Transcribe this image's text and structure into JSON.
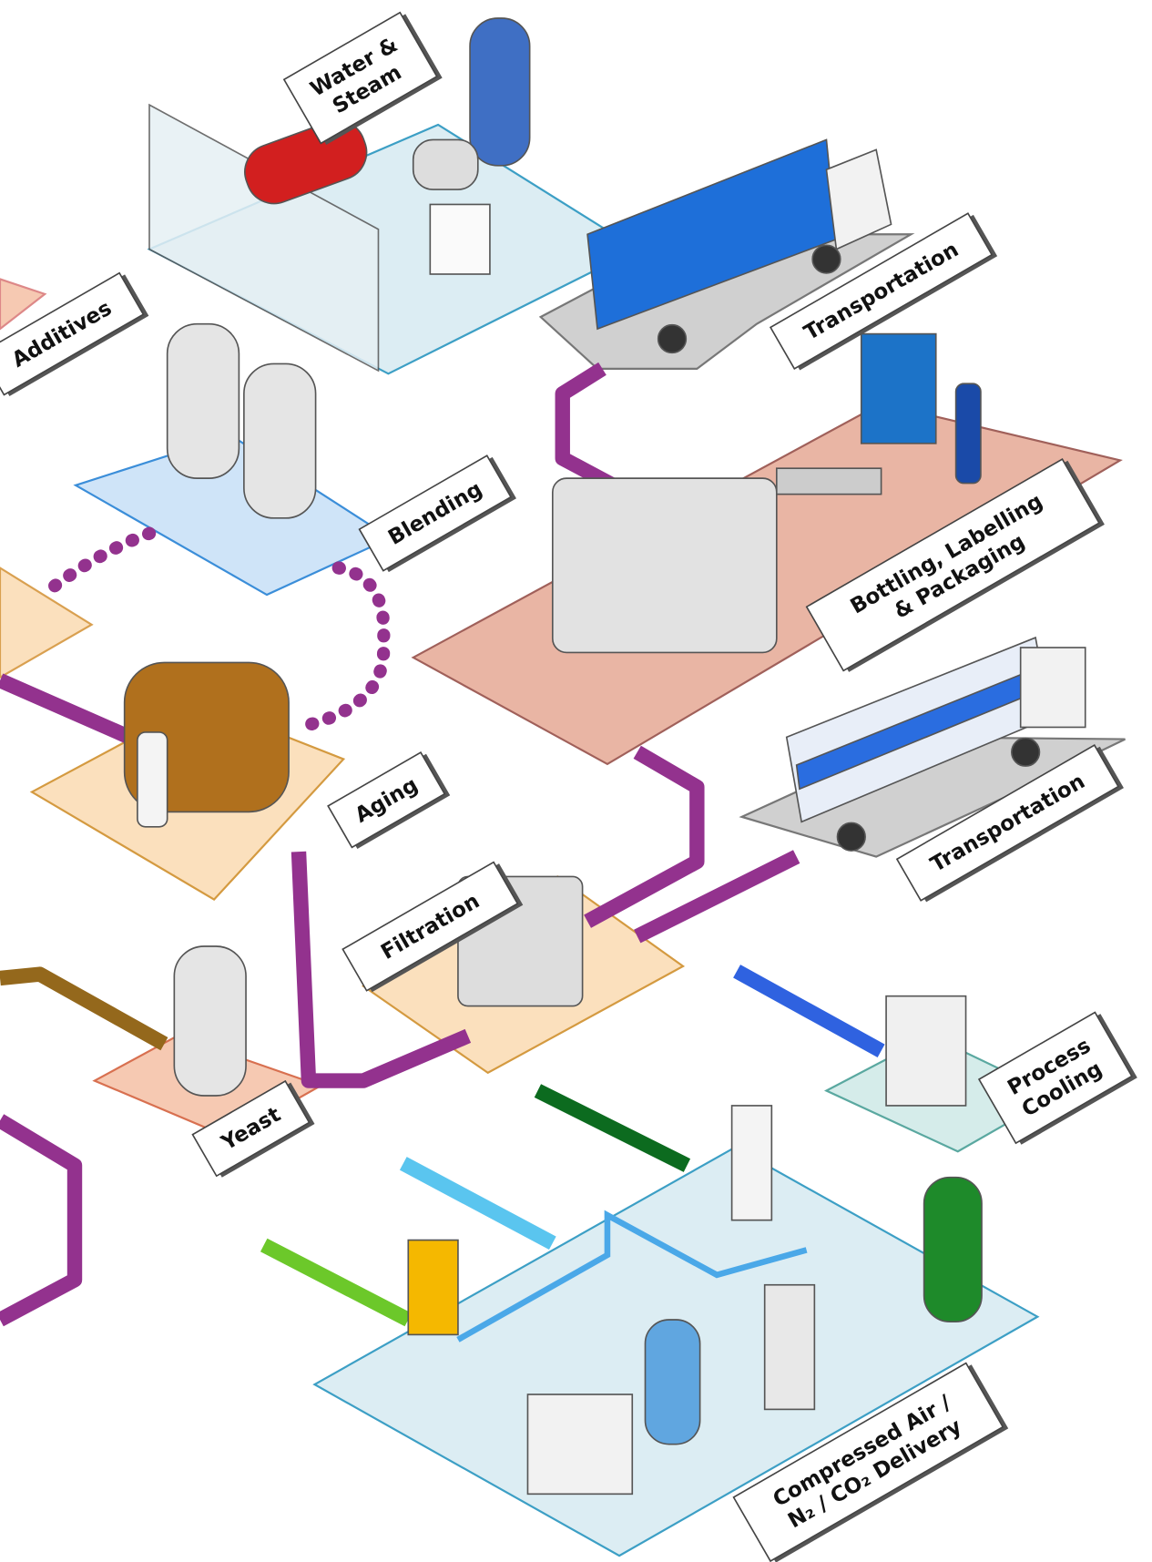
{
  "labels": [
    {
      "lines": [
        "Water &",
        "Steam"
      ]
    },
    {
      "lines": [
        "Additives"
      ]
    },
    {
      "lines": [
        "Transportation"
      ]
    },
    {
      "lines": [
        "Blending"
      ]
    },
    {
      "lines": [
        "Bottling, Labelling",
        "& Packaging"
      ]
    },
    {
      "lines": [
        "Aging"
      ]
    },
    {
      "lines": [
        "Transportation"
      ]
    },
    {
      "lines": [
        "Filtration"
      ]
    },
    {
      "lines": [
        "Yeast"
      ]
    },
    {
      "lines": [
        "Process",
        "Cooling"
      ]
    },
    {
      "lines": [
        "Compressed Air /",
        "N₂ / CO₂ Delivery"
      ]
    }
  ]
}
